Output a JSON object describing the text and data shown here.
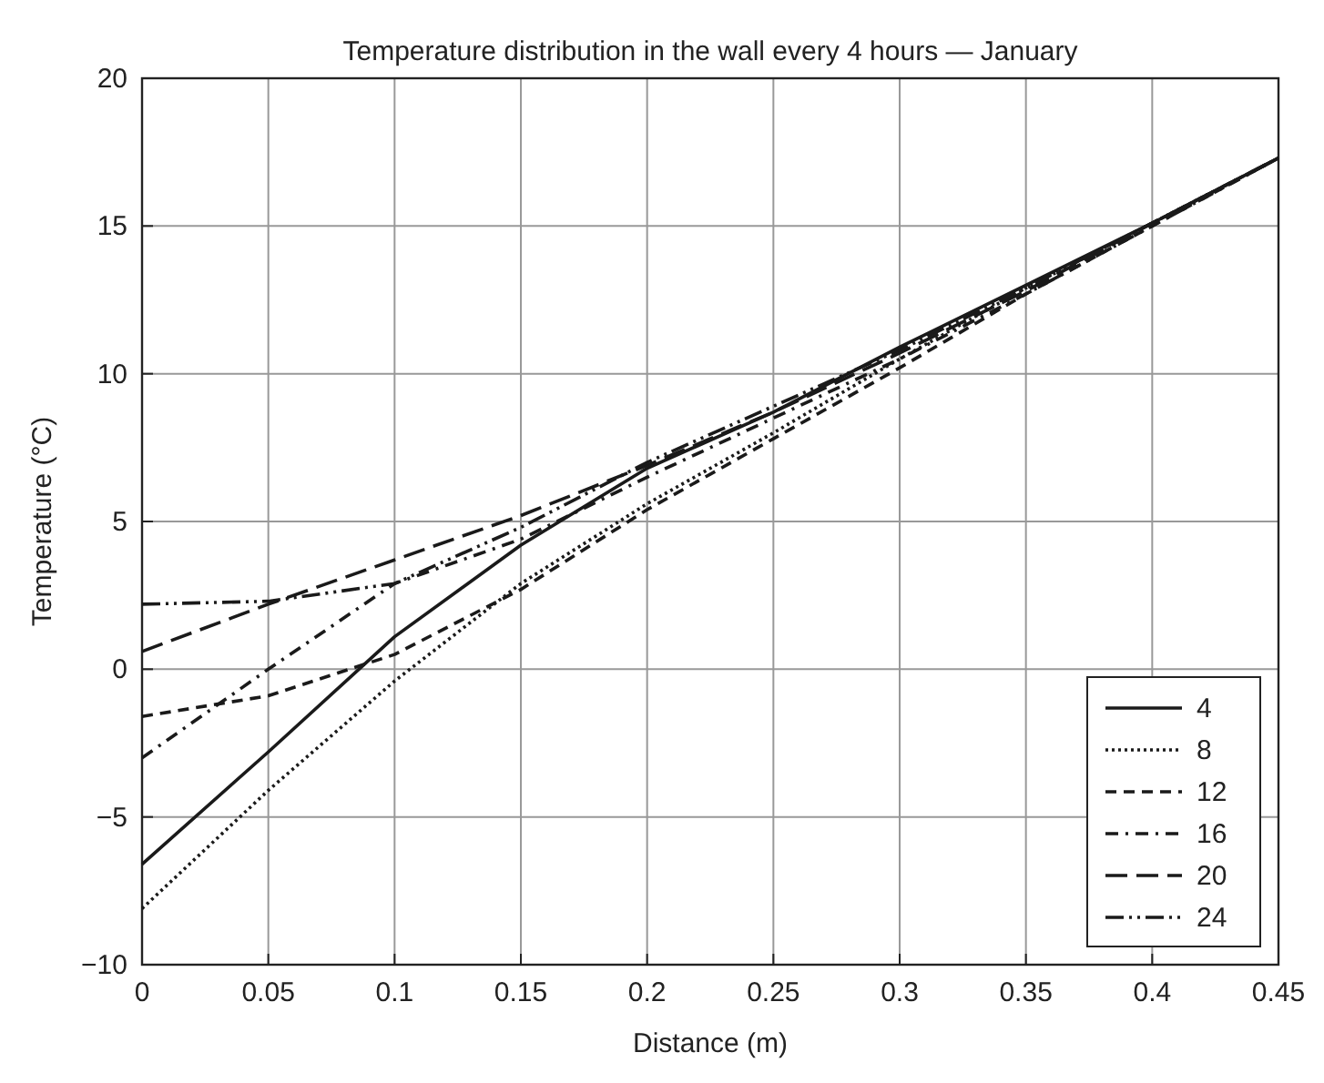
{
  "chart_data": {
    "type": "line",
    "title": "Temperature distribution in the wall every 4 hours — January",
    "xlabel": "Distance (m)",
    "ylabel": "Temperature (°C)",
    "x": [
      0,
      0.05,
      0.1,
      0.15,
      0.2,
      0.25,
      0.3,
      0.35,
      0.4,
      0.45
    ],
    "xlim": [
      0,
      0.45
    ],
    "xticks": [
      0,
      0.05,
      0.1,
      0.15,
      0.2,
      0.25,
      0.3,
      0.35,
      0.4,
      0.45
    ],
    "ylim": [
      -10,
      20
    ],
    "yticks": [
      {
        "value": -10,
        "label": "−10"
      },
      {
        "value": -5,
        "label": "−5"
      },
      0,
      5,
      10,
      15,
      20
    ],
    "grid": true,
    "legend": "bottom right",
    "marker": "none",
    "series": [
      {
        "name": "4",
        "color": "#1a1a1a",
        "line_style": "solid",
        "values": [
          -6.6,
          -2.8,
          1.1,
          4.2,
          6.8,
          8.7,
          10.9,
          13,
          15.1,
          17.3
        ]
      },
      {
        "name": "8",
        "color": "#1a1a1a",
        "line_style": "dotted",
        "values": [
          -8.1,
          -4.1,
          -0.4,
          2.9,
          5.6,
          8,
          10.5,
          12.9,
          15.1,
          17.3
        ]
      },
      {
        "name": "12",
        "color": "#1a1a1a",
        "line_style": "dashed",
        "values": [
          -1.6,
          -0.9,
          0.5,
          2.7,
          5.4,
          7.8,
          10.2,
          12.7,
          15,
          17.3
        ]
      },
      {
        "name": "16",
        "color": "#1a1a1a",
        "line_style": "dashdot",
        "values": [
          -3,
          0,
          2.9,
          4.4,
          6.5,
          8.5,
          10.5,
          12.7,
          15,
          17.3
        ]
      },
      {
        "name": "20",
        "color": "#1a1a1a",
        "line_style": "longdash",
        "values": [
          0.6,
          2.2,
          3.7,
          5.2,
          6.9,
          8.7,
          10.7,
          12.8,
          15.1,
          17.3
        ]
      },
      {
        "name": "24",
        "color": "#1a1a1a",
        "line_style": "dashdotdot",
        "values": [
          2.2,
          2.3,
          2.9,
          4.8,
          7,
          8.9,
          10.8,
          12.9,
          15.1,
          17.3
        ]
      }
    ]
  }
}
